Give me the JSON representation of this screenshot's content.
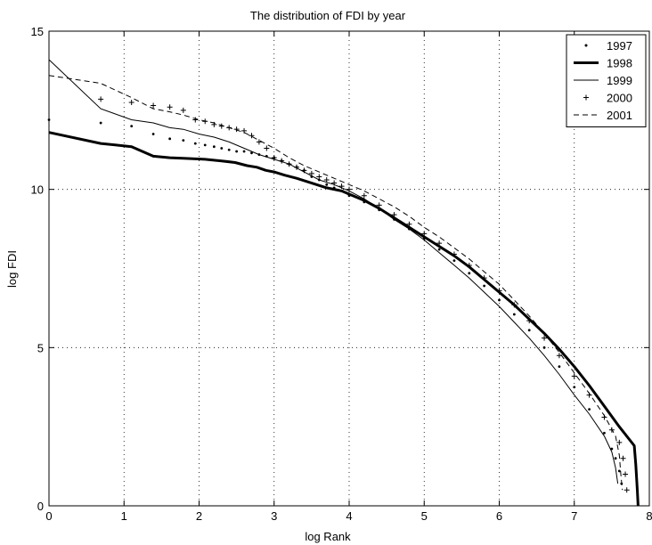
{
  "chart_data": {
    "type": "line",
    "title": "The distribution of FDI by year",
    "xlabel": "log Rank",
    "ylabel": "log FDI",
    "xlim": [
      0,
      8
    ],
    "ylim": [
      0,
      15
    ],
    "xticks": [
      0,
      1,
      2,
      3,
      4,
      5,
      6,
      7,
      8
    ],
    "yticks": [
      0,
      5,
      10,
      15
    ],
    "grid": true,
    "legend_position": "top-right",
    "series": [
      {
        "name": "1997",
        "style": "dots",
        "points": [
          [
            0,
            12.2
          ],
          [
            0.69,
            12.1
          ],
          [
            1.1,
            12.0
          ],
          [
            1.39,
            11.75
          ],
          [
            1.61,
            11.6
          ],
          [
            1.79,
            11.55
          ],
          [
            1.95,
            11.45
          ],
          [
            2.08,
            11.4
          ],
          [
            2.2,
            11.35
          ],
          [
            2.3,
            11.3
          ],
          [
            2.4,
            11.25
          ],
          [
            2.5,
            11.2
          ],
          [
            2.6,
            11.2
          ],
          [
            2.7,
            11.15
          ],
          [
            2.8,
            11.1
          ],
          [
            2.9,
            11.05
          ],
          [
            3.0,
            11.0
          ],
          [
            3.1,
            10.9
          ],
          [
            3.2,
            10.8
          ],
          [
            3.3,
            10.7
          ],
          [
            3.4,
            10.6
          ],
          [
            3.5,
            10.4
          ],
          [
            3.6,
            10.3
          ],
          [
            3.7,
            10.15
          ],
          [
            3.8,
            10.05
          ],
          [
            3.9,
            9.95
          ],
          [
            4.0,
            9.8
          ],
          [
            4.2,
            9.6
          ],
          [
            4.4,
            9.35
          ],
          [
            4.6,
            9.05
          ],
          [
            4.8,
            8.75
          ],
          [
            5.0,
            8.45
          ],
          [
            5.2,
            8.1
          ],
          [
            5.4,
            7.75
          ],
          [
            5.6,
            7.35
          ],
          [
            5.8,
            6.95
          ],
          [
            6.0,
            6.5
          ],
          [
            6.2,
            6.05
          ],
          [
            6.4,
            5.55
          ],
          [
            6.6,
            5.0
          ],
          [
            6.8,
            4.4
          ],
          [
            7.0,
            3.75
          ],
          [
            7.2,
            3.05
          ],
          [
            7.4,
            2.3
          ],
          [
            7.5,
            1.8
          ],
          [
            7.55,
            1.5
          ],
          [
            7.6,
            1.1
          ],
          [
            7.63,
            0.7
          ]
        ]
      },
      {
        "name": "1998",
        "style": "thick",
        "points": [
          [
            0,
            11.8
          ],
          [
            0.69,
            11.45
          ],
          [
            1.1,
            11.35
          ],
          [
            1.39,
            11.05
          ],
          [
            1.61,
            11.0
          ],
          [
            1.79,
            10.98
          ],
          [
            2.08,
            10.95
          ],
          [
            2.3,
            10.9
          ],
          [
            2.48,
            10.85
          ],
          [
            2.64,
            10.75
          ],
          [
            2.77,
            10.7
          ],
          [
            2.89,
            10.6
          ],
          [
            3.0,
            10.55
          ],
          [
            3.14,
            10.45
          ],
          [
            3.3,
            10.35
          ],
          [
            3.5,
            10.2
          ],
          [
            3.7,
            10.05
          ],
          [
            3.9,
            9.95
          ],
          [
            4.0,
            9.85
          ],
          [
            4.2,
            9.65
          ],
          [
            4.4,
            9.4
          ],
          [
            4.6,
            9.1
          ],
          [
            4.8,
            8.8
          ],
          [
            5.0,
            8.5
          ],
          [
            5.2,
            8.2
          ],
          [
            5.4,
            7.9
          ],
          [
            5.6,
            7.55
          ],
          [
            5.8,
            7.15
          ],
          [
            6.0,
            6.75
          ],
          [
            6.2,
            6.35
          ],
          [
            6.4,
            5.9
          ],
          [
            6.6,
            5.45
          ],
          [
            6.8,
            4.95
          ],
          [
            7.0,
            4.4
          ],
          [
            7.2,
            3.8
          ],
          [
            7.4,
            3.15
          ],
          [
            7.6,
            2.5
          ],
          [
            7.8,
            1.9
          ],
          [
            7.82,
            1.3
          ],
          [
            7.84,
            0.5
          ],
          [
            7.85,
            0
          ]
        ]
      },
      {
        "name": "1999",
        "style": "thin",
        "points": [
          [
            0,
            14.1
          ],
          [
            0.69,
            12.55
          ],
          [
            1.1,
            12.2
          ],
          [
            1.39,
            12.1
          ],
          [
            1.61,
            11.95
          ],
          [
            1.79,
            11.9
          ],
          [
            2.0,
            11.75
          ],
          [
            2.2,
            11.65
          ],
          [
            2.4,
            11.5
          ],
          [
            2.6,
            11.3
          ],
          [
            2.8,
            11.1
          ],
          [
            3.0,
            10.95
          ],
          [
            3.2,
            10.8
          ],
          [
            3.4,
            10.55
          ],
          [
            3.6,
            10.3
          ],
          [
            3.8,
            10.15
          ],
          [
            4.0,
            9.95
          ],
          [
            4.2,
            9.7
          ],
          [
            4.4,
            9.4
          ],
          [
            4.6,
            9.05
          ],
          [
            4.8,
            8.75
          ],
          [
            5.0,
            8.4
          ],
          [
            5.2,
            8.0
          ],
          [
            5.4,
            7.6
          ],
          [
            5.6,
            7.2
          ],
          [
            5.8,
            6.75
          ],
          [
            6.0,
            6.3
          ],
          [
            6.2,
            5.8
          ],
          [
            6.4,
            5.3
          ],
          [
            6.6,
            4.75
          ],
          [
            6.8,
            4.15
          ],
          [
            7.0,
            3.5
          ],
          [
            7.2,
            2.9
          ],
          [
            7.4,
            2.2
          ],
          [
            7.5,
            1.7
          ],
          [
            7.55,
            1.2
          ],
          [
            7.58,
            0.7
          ]
        ]
      },
      {
        "name": "2000",
        "style": "plus",
        "points": [
          [
            0.69,
            12.85
          ],
          [
            1.1,
            12.75
          ],
          [
            1.39,
            12.65
          ],
          [
            1.61,
            12.6
          ],
          [
            1.79,
            12.5
          ],
          [
            1.95,
            12.2
          ],
          [
            2.08,
            12.15
          ],
          [
            2.2,
            12.05
          ],
          [
            2.3,
            12.0
          ],
          [
            2.4,
            11.95
          ],
          [
            2.5,
            11.9
          ],
          [
            2.6,
            11.85
          ],
          [
            2.7,
            11.7
          ],
          [
            2.8,
            11.5
          ],
          [
            2.9,
            11.3
          ],
          [
            3.0,
            11.0
          ],
          [
            3.1,
            10.9
          ],
          [
            3.2,
            10.8
          ],
          [
            3.3,
            10.7
          ],
          [
            3.4,
            10.6
          ],
          [
            3.5,
            10.5
          ],
          [
            3.6,
            10.4
          ],
          [
            3.7,
            10.3
          ],
          [
            3.8,
            10.2
          ],
          [
            3.9,
            10.1
          ],
          [
            4.0,
            10.0
          ],
          [
            4.2,
            9.8
          ],
          [
            4.4,
            9.5
          ],
          [
            4.6,
            9.2
          ],
          [
            4.8,
            8.9
          ],
          [
            5.0,
            8.6
          ],
          [
            5.2,
            8.3
          ],
          [
            5.4,
            7.95
          ],
          [
            5.6,
            7.6
          ],
          [
            5.8,
            7.2
          ],
          [
            6.0,
            6.8
          ],
          [
            6.2,
            6.35
          ],
          [
            6.4,
            5.85
          ],
          [
            6.6,
            5.3
          ],
          [
            6.8,
            4.75
          ],
          [
            7.0,
            4.1
          ],
          [
            7.2,
            3.5
          ],
          [
            7.4,
            2.8
          ],
          [
            7.5,
            2.4
          ],
          [
            7.6,
            2.0
          ],
          [
            7.65,
            1.5
          ],
          [
            7.68,
            1.0
          ],
          [
            7.7,
            0.5
          ]
        ]
      },
      {
        "name": "2001",
        "style": "dashed",
        "points": [
          [
            0,
            13.6
          ],
          [
            0.69,
            13.35
          ],
          [
            1.1,
            12.9
          ],
          [
            1.39,
            12.55
          ],
          [
            1.61,
            12.45
          ],
          [
            1.79,
            12.35
          ],
          [
            2.0,
            12.2
          ],
          [
            2.2,
            12.1
          ],
          [
            2.4,
            11.95
          ],
          [
            2.6,
            11.8
          ],
          [
            2.8,
            11.55
          ],
          [
            3.0,
            11.3
          ],
          [
            3.2,
            11.0
          ],
          [
            3.4,
            10.75
          ],
          [
            3.6,
            10.55
          ],
          [
            3.8,
            10.35
          ],
          [
            4.0,
            10.15
          ],
          [
            4.2,
            9.95
          ],
          [
            4.4,
            9.7
          ],
          [
            4.6,
            9.45
          ],
          [
            4.8,
            9.15
          ],
          [
            5.0,
            8.8
          ],
          [
            5.2,
            8.5
          ],
          [
            5.4,
            8.15
          ],
          [
            5.6,
            7.8
          ],
          [
            5.8,
            7.4
          ],
          [
            6.0,
            7.0
          ],
          [
            6.2,
            6.5
          ],
          [
            6.4,
            6.0
          ],
          [
            6.6,
            5.45
          ],
          [
            6.8,
            4.85
          ],
          [
            7.0,
            4.2
          ],
          [
            7.2,
            3.55
          ],
          [
            7.4,
            2.85
          ],
          [
            7.55,
            2.2
          ],
          [
            7.6,
            1.6
          ],
          [
            7.62,
            1.0
          ],
          [
            7.64,
            0.5
          ]
        ]
      }
    ]
  }
}
